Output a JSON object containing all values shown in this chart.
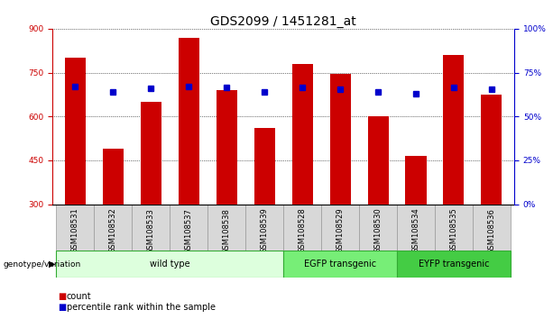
{
  "title": "GDS2099 / 1451281_at",
  "samples": [
    "GSM108531",
    "GSM108532",
    "GSM108533",
    "GSM108537",
    "GSM108538",
    "GSM108539",
    "GSM108528",
    "GSM108529",
    "GSM108530",
    "GSM108534",
    "GSM108535",
    "GSM108536"
  ],
  "counts": [
    800,
    490,
    650,
    870,
    690,
    560,
    780,
    745,
    600,
    465,
    810,
    675
  ],
  "percentiles": [
    67,
    64,
    66,
    67,
    66.5,
    64,
    66.5,
    65.5,
    64,
    63,
    66.5,
    65.5
  ],
  "ylim_left": [
    300,
    900
  ],
  "ylim_right": [
    0,
    100
  ],
  "yticks_left": [
    300,
    450,
    600,
    750,
    900
  ],
  "yticks_right": [
    0,
    25,
    50,
    75,
    100
  ],
  "bar_color": "#cc0000",
  "dot_color": "#0000cc",
  "bar_width": 0.55,
  "groups": [
    {
      "label": "wild type",
      "start": 0,
      "end": 6,
      "color": "#ddffdd",
      "border_color": "#33aa33"
    },
    {
      "label": "EGFP transgenic",
      "start": 6,
      "end": 9,
      "color": "#77ee77",
      "border_color": "#33aa33"
    },
    {
      "label": "EYFP transgenic",
      "start": 9,
      "end": 12,
      "color": "#44cc44",
      "border_color": "#33aa33"
    }
  ],
  "genotype_label": "genotype/variation",
  "legend_count": "count",
  "legend_percentile": "percentile rank within the sample",
  "tick_label_bg": "#d8d8d8",
  "title_fontsize": 10,
  "tick_fontsize": 6.5
}
